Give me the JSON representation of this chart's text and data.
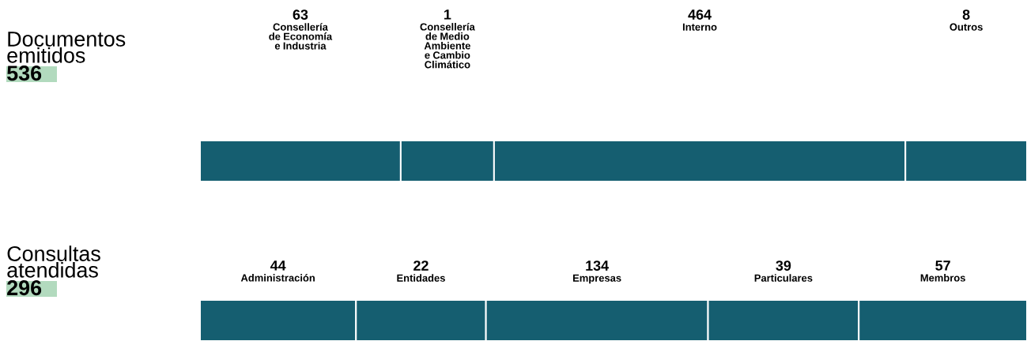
{
  "chart_data": [
    {
      "type": "other",
      "title": "Documentos emitidos",
      "subtitle": "536",
      "categories": [
        "Consellería de Economía e Industria",
        "Consellería de Medio Ambiente e Cambio Climático",
        "Interno",
        "Outros"
      ],
      "values": [
        63,
        1,
        464,
        8
      ],
      "color": "#155e70",
      "data_labels": true
    },
    {
      "type": "other",
      "title": "Consultas atendidas",
      "subtitle": "296",
      "categories": [
        "Administración",
        "Entidades",
        "Empresas",
        "Particulares",
        "Membros"
      ],
      "values": [
        44,
        22,
        134,
        39,
        57
      ],
      "color": "#155e70",
      "data_labels": true
    }
  ]
}
